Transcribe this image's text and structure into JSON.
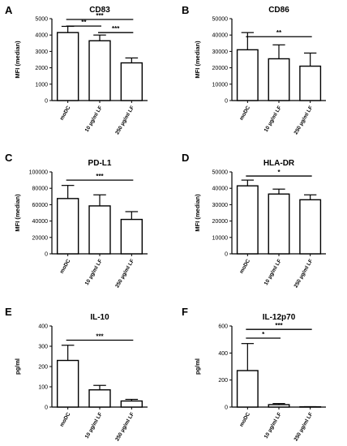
{
  "figure": {
    "panels": [
      {
        "letter": "A"
      },
      {
        "letter": "B"
      },
      {
        "letter": "C"
      },
      {
        "letter": "D"
      },
      {
        "letter": "E"
      },
      {
        "letter": "F"
      }
    ]
  },
  "chart_data": [
    {
      "type": "bar",
      "title": "CD83",
      "ylabel": "MFI (median)",
      "categories": [
        "moDC",
        "10 µg/ml LF",
        "250 µg/ml LF"
      ],
      "values": [
        4150,
        3650,
        2300
      ],
      "errors": [
        380,
        350,
        300
      ],
      "ylim": [
        0,
        5000
      ],
      "yticks": [
        0,
        1000,
        2000,
        3000,
        4000,
        5000
      ],
      "significance": [
        {
          "from": 0,
          "to": 1,
          "label": "**",
          "y": 4550
        },
        {
          "from": 0,
          "to": 2,
          "label": "***",
          "y": 4950
        },
        {
          "from": 1,
          "to": 2,
          "label": "***",
          "y": 4150
        }
      ]
    },
    {
      "type": "bar",
      "title": "CD86",
      "ylabel": "MFI (median)",
      "categories": [
        "moDC",
        "10 µg/ml LF",
        "250 µg/ml LF"
      ],
      "values": [
        31000,
        25500,
        21000
      ],
      "errors": [
        10500,
        8500,
        8000
      ],
      "ylim": [
        0,
        50000
      ],
      "yticks": [
        0,
        10000,
        20000,
        30000,
        40000,
        50000
      ],
      "significance": [
        {
          "from": 0,
          "to": 2,
          "label": "**",
          "y": 39000
        }
      ]
    },
    {
      "type": "bar",
      "title": "PD-L1",
      "ylabel": "MFI (median)",
      "categories": [
        "moDC",
        "10 µg/ml LF",
        "250 µg/ml LF"
      ],
      "values": [
        67500,
        58500,
        42000
      ],
      "errors": [
        16000,
        13500,
        9500
      ],
      "ylim": [
        0,
        100000
      ],
      "yticks": [
        0,
        20000,
        40000,
        60000,
        80000,
        100000
      ],
      "significance": [
        {
          "from": 0,
          "to": 2,
          "label": "***",
          "y": 90000
        }
      ]
    },
    {
      "type": "bar",
      "title": "HLA-DR",
      "ylabel": "MFI (median)",
      "categories": [
        "moDC",
        "10 µg/ml LF",
        "250 µg/ml LF"
      ],
      "values": [
        41500,
        36500,
        33000
      ],
      "errors": [
        3500,
        3000,
        3000
      ],
      "ylim": [
        0,
        50000
      ],
      "yticks": [
        0,
        10000,
        20000,
        30000,
        40000,
        50000
      ],
      "significance": [
        {
          "from": 0,
          "to": 2,
          "label": "*",
          "y": 47500
        }
      ]
    },
    {
      "type": "bar",
      "title": "IL-10",
      "ylabel": "pg/ml",
      "categories": [
        "moDC",
        "10 µg/ml LF",
        "250 µg/ml LF"
      ],
      "values": [
        230,
        85,
        30
      ],
      "errors": [
        75,
        22,
        8
      ],
      "ylim": [
        0,
        400
      ],
      "yticks": [
        0,
        100,
        200,
        300,
        400
      ],
      "significance": [
        {
          "from": 0,
          "to": 2,
          "label": "***",
          "y": 330
        }
      ]
    },
    {
      "type": "bar",
      "title": "IL-12p70",
      "ylabel": "pg/ml",
      "categories": [
        "moDC",
        "10 µg/ml LF",
        "250 µg/ml LF"
      ],
      "values": [
        270,
        18,
        2
      ],
      "errors": [
        200,
        8,
        1
      ],
      "ylim": [
        0,
        600
      ],
      "yticks": [
        0,
        200,
        400,
        600
      ],
      "significance": [
        {
          "from": 0,
          "to": 1,
          "label": "*",
          "y": 510
        },
        {
          "from": 0,
          "to": 2,
          "label": "***",
          "y": 575
        }
      ]
    }
  ]
}
